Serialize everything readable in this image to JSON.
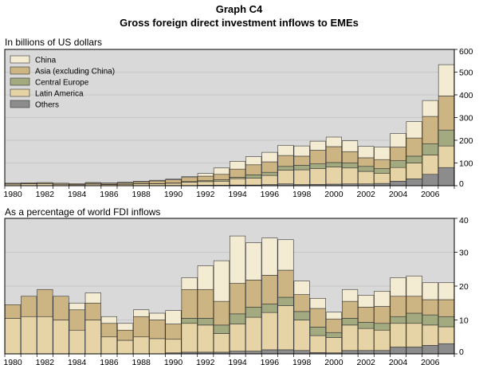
{
  "figure": {
    "heading": "Graph C4",
    "title": "Gross foreign direct investment inflows to EMEs"
  },
  "colors": {
    "plot_bg": "#d9d9d9",
    "grid": "#bfbfbf",
    "bar_edge": "#333333",
    "series": {
      "Others": "#8c8c8c",
      "Latin America": "#e6d4a6",
      "Central Europe": "#a3aa80",
      "Asia (excluding China)": "#cdb483",
      "China": "#f3ecd3"
    }
  },
  "chart_data": [
    {
      "type": "bar",
      "stacked": true,
      "panel_label": "In billions of US dollars",
      "categories": [
        "1980",
        "1981",
        "1982",
        "1983",
        "1984",
        "1985",
        "1986",
        "1987",
        "1988",
        "1989",
        "1990",
        "1991",
        "1992",
        "1993",
        "1994",
        "1995",
        "1996",
        "1997",
        "1998",
        "1999",
        "2000",
        "2001",
        "2002",
        "2003",
        "2004",
        "2005",
        "2006",
        "2007"
      ],
      "x_tick_labels": [
        "1980",
        "1982",
        "1984",
        "1986",
        "1988",
        "1990",
        "1992",
        "1994",
        "1996",
        "1998",
        "2000",
        "2002",
        "2004",
        "2006"
      ],
      "ylim": [
        0,
        600
      ],
      "y_ticks": [
        0,
        100,
        200,
        300,
        400,
        500,
        600
      ],
      "y_axis_side": "right",
      "grid": true,
      "legend": {
        "placement": "top-left",
        "order": [
          "China",
          "Asia (excluding China)",
          "Central Europe",
          "Latin America",
          "Others"
        ]
      },
      "series": [
        {
          "name": "Others",
          "values": [
            0.5,
            0.5,
            0.5,
            0.5,
            0.5,
            0.5,
            0.5,
            0.5,
            0.5,
            0.5,
            1,
            1,
            2,
            2,
            3,
            3,
            5,
            8,
            5,
            6,
            7,
            8,
            8,
            10,
            20,
            30,
            50,
            80
          ]
        },
        {
          "name": "Latin America",
          "values": [
            7,
            8,
            9,
            6,
            4,
            7,
            5,
            6,
            8,
            8,
            10,
            14,
            16,
            18,
            28,
            30,
            40,
            60,
            65,
            70,
            75,
            70,
            55,
            45,
            60,
            70,
            85,
            95
          ]
        },
        {
          "name": "Central Europe",
          "values": [
            0.5,
            0.5,
            0.5,
            0.5,
            0.5,
            0.5,
            0.5,
            0.5,
            0.5,
            0.5,
            1,
            3,
            4,
            6,
            6,
            15,
            14,
            17,
            20,
            20,
            20,
            22,
            22,
            20,
            30,
            30,
            50,
            70
          ]
        },
        {
          "name": "Asia (excluding China)",
          "values": [
            3,
            4,
            4,
            4,
            4,
            5,
            5,
            6,
            8,
            12,
            14,
            18,
            20,
            24,
            36,
            44,
            46,
            48,
            40,
            60,
            70,
            50,
            38,
            40,
            60,
            80,
            120,
            150
          ]
        },
        {
          "name": "China",
          "values": [
            0,
            0,
            0,
            0,
            0,
            1,
            1,
            2,
            3,
            3,
            3,
            4,
            12,
            28,
            34,
            36,
            42,
            45,
            45,
            40,
            42,
            48,
            50,
            55,
            60,
            72,
            70,
            138
          ]
        }
      ]
    },
    {
      "type": "bar",
      "stacked": true,
      "panel_label": "As a percentage of world FDI inflows",
      "categories": [
        "1980",
        "1981",
        "1982",
        "1983",
        "1984",
        "1985",
        "1986",
        "1987",
        "1988",
        "1989",
        "1990",
        "1991",
        "1992",
        "1993",
        "1994",
        "1995",
        "1996",
        "1997",
        "1998",
        "1999",
        "2000",
        "2001",
        "2002",
        "2003",
        "2004",
        "2005",
        "2006",
        "2007"
      ],
      "x_tick_labels": [
        "1980",
        "1982",
        "1984",
        "1986",
        "1988",
        "1990",
        "1992",
        "1994",
        "1996",
        "1998",
        "2000",
        "2002",
        "2004",
        "2006"
      ],
      "ylim": [
        0,
        40
      ],
      "y_ticks": [
        0,
        10,
        20,
        30,
        40
      ],
      "y_axis_side": "right",
      "grid": true,
      "series": [
        {
          "name": "Others",
          "values": [
            0,
            0,
            0,
            0,
            0,
            0,
            0,
            0,
            0,
            0,
            0.3,
            0.5,
            0.5,
            0.5,
            0.8,
            0.8,
            1.2,
            1.2,
            1,
            0.4,
            0.3,
            1,
            1,
            1,
            2,
            2,
            2.5,
            3
          ]
        },
        {
          "name": "Latin America",
          "values": [
            10.5,
            11,
            11,
            10,
            7,
            10,
            5,
            4,
            5,
            4.5,
            4,
            8.5,
            8,
            5.5,
            8,
            10,
            11,
            13,
            9,
            5,
            4.5,
            7.5,
            6.5,
            6,
            7,
            7,
            6,
            5
          ]
        },
        {
          "name": "Central Europe",
          "values": [
            0,
            0,
            0,
            0,
            0,
            0,
            0,
            0,
            0,
            0,
            0,
            1.5,
            2,
            2.5,
            3,
            3,
            2.5,
            2.5,
            2.5,
            2.5,
            1.5,
            2,
            1.8,
            2,
            2,
            3,
            3,
            3
          ]
        },
        {
          "name": "Asia (excluding China)",
          "values": [
            4,
            6,
            8,
            7,
            6,
            5,
            4,
            3,
            6,
            5.5,
            4.5,
            8.5,
            8.5,
            7,
            9,
            8,
            8.5,
            8,
            5,
            5.5,
            4,
            5,
            4.5,
            5,
            6,
            5,
            4.5,
            5
          ]
        },
        {
          "name": "China",
          "values": [
            0,
            0,
            0,
            0,
            2,
            3,
            2,
            2,
            2,
            2,
            4,
            3.5,
            7,
            12,
            14,
            11,
            11,
            9,
            4,
            3,
            2,
            3.5,
            3.5,
            4.5,
            5.5,
            6,
            5,
            5
          ]
        }
      ]
    }
  ]
}
